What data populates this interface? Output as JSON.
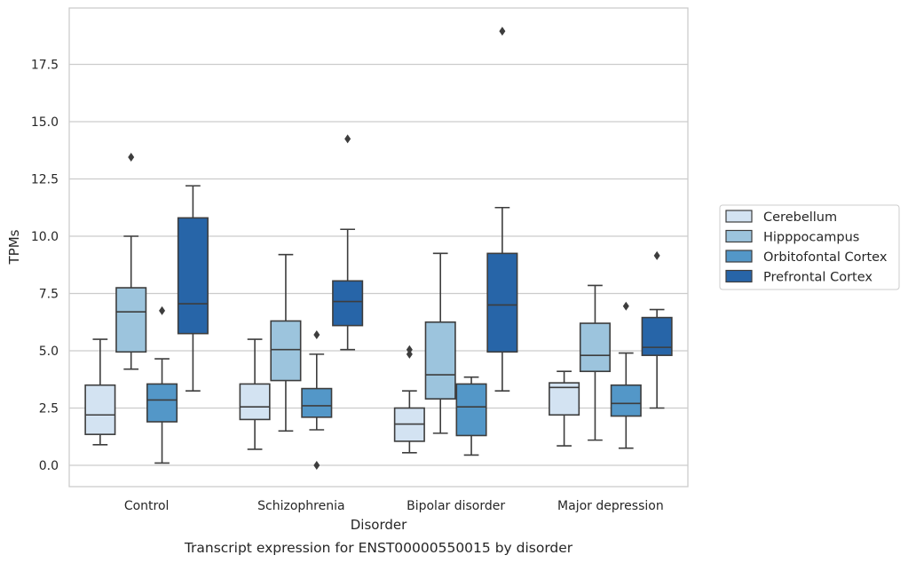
{
  "chart_data": {
    "type": "box",
    "caption": "Transcript expression for ENST00000550015 by disorder",
    "xlabel": "Disorder",
    "ylabel": "TPMs",
    "ylim": [
      -0.9,
      19.9
    ],
    "yticks": [
      "0.0",
      "2.5",
      "5.0",
      "7.5",
      "10.0",
      "12.5",
      "15.0",
      "17.5"
    ],
    "grid": "horizontal",
    "legend_position": "right",
    "categories": [
      "Control",
      "Schizophrenia",
      "Bipolar disorder",
      "Major depression"
    ],
    "series": [
      {
        "name": "Cerebellum",
        "color": "#d3e3f2",
        "boxes": [
          {
            "whisker_low": 0.9,
            "q1": 1.35,
            "median": 2.2,
            "q3": 3.5,
            "whisker_high": 5.5,
            "outliers": []
          },
          {
            "whisker_low": 0.7,
            "q1": 2.0,
            "median": 2.55,
            "q3": 3.55,
            "whisker_high": 5.5,
            "outliers": []
          },
          {
            "whisker_low": 0.55,
            "q1": 1.05,
            "median": 1.8,
            "q3": 2.5,
            "whisker_high": 3.25,
            "outliers": [
              4.85,
              5.05
            ]
          },
          {
            "whisker_low": 0.85,
            "q1": 2.2,
            "median": 3.4,
            "q3": 3.6,
            "whisker_high": 4.1,
            "outliers": []
          }
        ]
      },
      {
        "name": "Hipppocampus",
        "color": "#9cc4dd",
        "boxes": [
          {
            "whisker_low": 4.2,
            "q1": 4.95,
            "median": 6.7,
            "q3": 7.75,
            "whisker_high": 10.0,
            "outliers": [
              13.45
            ]
          },
          {
            "whisker_low": 1.5,
            "q1": 3.7,
            "median": 5.05,
            "q3": 6.3,
            "whisker_high": 9.2,
            "outliers": []
          },
          {
            "whisker_low": 1.4,
            "q1": 2.9,
            "median": 3.95,
            "q3": 6.25,
            "whisker_high": 9.25,
            "outliers": []
          },
          {
            "whisker_low": 1.1,
            "q1": 4.1,
            "median": 4.8,
            "q3": 6.2,
            "whisker_high": 7.85,
            "outliers": []
          }
        ]
      },
      {
        "name": "Orbitofontal Cortex",
        "color": "#5397c8",
        "boxes": [
          {
            "whisker_low": 0.1,
            "q1": 1.9,
            "median": 2.85,
            "q3": 3.55,
            "whisker_high": 4.65,
            "outliers": [
              6.75
            ]
          },
          {
            "whisker_low": 1.55,
            "q1": 2.1,
            "median": 2.6,
            "q3": 3.35,
            "whisker_high": 4.85,
            "outliers": [
              0.0,
              5.7
            ]
          },
          {
            "whisker_low": 0.45,
            "q1": 1.3,
            "median": 2.55,
            "q3": 3.55,
            "whisker_high": 3.85,
            "outliers": []
          },
          {
            "whisker_low": 0.75,
            "q1": 2.15,
            "median": 2.7,
            "q3": 3.5,
            "whisker_high": 4.9,
            "outliers": [
              6.95
            ]
          }
        ]
      },
      {
        "name": "Prefrontal Cortex",
        "color": "#2765a8",
        "boxes": [
          {
            "whisker_low": 3.25,
            "q1": 5.75,
            "median": 7.05,
            "q3": 10.8,
            "whisker_high": 12.2,
            "outliers": []
          },
          {
            "whisker_low": 5.05,
            "q1": 6.1,
            "median": 7.15,
            "q3": 8.05,
            "whisker_high": 10.3,
            "outliers": [
              14.25
            ]
          },
          {
            "whisker_low": 3.25,
            "q1": 4.95,
            "median": 7.0,
            "q3": 9.25,
            "whisker_high": 11.25,
            "outliers": [
              18.95
            ]
          },
          {
            "whisker_low": 2.5,
            "q1": 4.8,
            "median": 5.15,
            "q3": 6.45,
            "whisker_high": 6.8,
            "outliers": [
              9.15
            ]
          }
        ]
      }
    ]
  }
}
